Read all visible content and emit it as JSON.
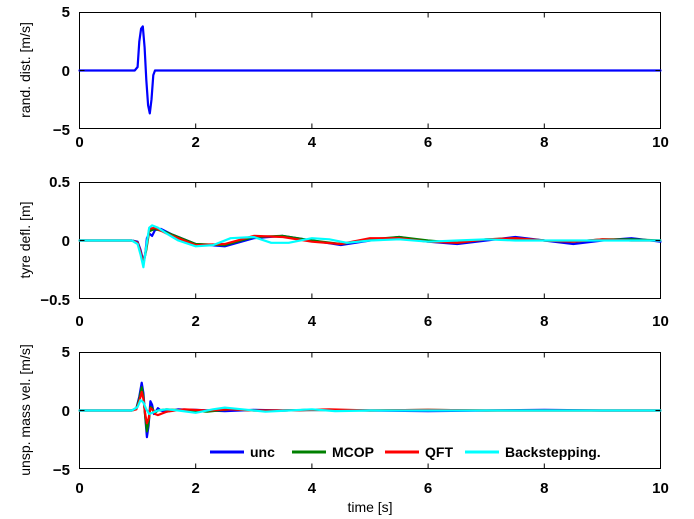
{
  "chart_data": [
    {
      "type": "line",
      "ylabel": "rand. dist. [m/s]",
      "xlabel": "",
      "xlim": [
        0,
        10
      ],
      "ylim": [
        -5,
        5
      ],
      "xticks": [
        "0",
        "2",
        "4",
        "6",
        "8",
        "10"
      ],
      "yticks": [
        "5",
        "0",
        "−5"
      ],
      "grid": false,
      "series": [
        {
          "color": "#0000ff",
          "x": [
            0,
            0.9,
            0.95,
            1.0,
            1.03,
            1.06,
            1.09,
            1.12,
            1.15,
            1.18,
            1.21,
            1.24,
            1.27,
            1.3,
            10
          ],
          "y": [
            0,
            0,
            0,
            0.3,
            2.5,
            3.6,
            3.8,
            2.0,
            -0.8,
            -3.0,
            -3.7,
            -2.5,
            -0.4,
            0,
            0
          ]
        }
      ]
    },
    {
      "type": "line",
      "ylabel": "tyre defl. [m]",
      "xlabel": "",
      "xlim": [
        0,
        10
      ],
      "ylim": [
        -0.5,
        0.5
      ],
      "xticks": [
        "0",
        "2",
        "4",
        "6",
        "8",
        "10"
      ],
      "yticks": [
        "0.5",
        "0",
        "−0.5"
      ],
      "grid": false,
      "series": [
        {
          "color": "#0000ff",
          "x": [
            0,
            0.9,
            1.0,
            1.05,
            1.1,
            1.13,
            1.16,
            1.2,
            1.25,
            1.3,
            1.4,
            1.6,
            2.0,
            2.5,
            3.0,
            3.5,
            4.0,
            4.5,
            5.0,
            5.5,
            6.0,
            6.5,
            7.0,
            7.5,
            8.0,
            8.5,
            9.0,
            9.5,
            10.0
          ],
          "y": [
            0,
            0,
            -0.01,
            -0.08,
            -0.18,
            -0.12,
            0.02,
            0.06,
            0.04,
            0.09,
            0.1,
            0.05,
            -0.03,
            -0.05,
            0.02,
            0.04,
            0.0,
            -0.04,
            0.0,
            0.03,
            -0.01,
            -0.03,
            0.0,
            0.03,
            0.0,
            -0.03,
            0.0,
            0.02,
            -0.01
          ]
        },
        {
          "color": "#008000",
          "x": [
            0,
            0.9,
            1.0,
            1.05,
            1.1,
            1.15,
            1.2,
            1.3,
            1.5,
            2.0,
            2.5,
            3.0,
            3.5,
            4.0,
            4.5,
            5.0,
            5.5,
            6.0,
            6.5,
            7.0,
            7.5,
            8.0,
            8.5,
            9.0,
            9.5,
            10.0
          ],
          "y": [
            0,
            0,
            -0.02,
            -0.1,
            -0.2,
            -0.08,
            0.08,
            0.1,
            0.07,
            -0.03,
            -0.04,
            0.03,
            0.04,
            0.0,
            -0.03,
            0.01,
            0.03,
            0.0,
            -0.02,
            0.01,
            0.02,
            0.0,
            -0.01,
            0.01,
            0.01,
            0.0
          ]
        },
        {
          "color": "#ff0000",
          "x": [
            0,
            0.9,
            1.0,
            1.05,
            1.1,
            1.15,
            1.2,
            1.3,
            1.5,
            2.0,
            2.5,
            3.0,
            3.5,
            4.0,
            4.5,
            5.0,
            5.5,
            6.0,
            6.5,
            7.0,
            7.5,
            8.0,
            8.5,
            9.0,
            9.5,
            10.0
          ],
          "y": [
            0,
            0,
            -0.02,
            -0.1,
            -0.2,
            -0.06,
            0.1,
            0.11,
            0.06,
            -0.04,
            -0.03,
            0.04,
            0.03,
            -0.01,
            -0.03,
            0.02,
            0.02,
            -0.01,
            -0.02,
            0.01,
            0.02,
            0.0,
            -0.01,
            0.01,
            0.0,
            0.0
          ]
        },
        {
          "color": "#00ffff",
          "x": [
            0,
            0.9,
            1.0,
            1.05,
            1.1,
            1.15,
            1.2,
            1.25,
            1.35,
            1.5,
            1.7,
            2.0,
            2.3,
            2.6,
            3.0,
            3.3,
            3.6,
            4.0,
            4.3,
            4.6,
            5.0,
            5.5,
            6.0,
            6.5,
            7.0,
            7.5,
            8.0,
            8.5,
            9.0,
            9.5,
            10.0
          ],
          "y": [
            0,
            0,
            -0.03,
            -0.12,
            -0.23,
            -0.05,
            0.11,
            0.13,
            0.11,
            0.06,
            0.0,
            -0.05,
            -0.04,
            0.02,
            0.03,
            -0.02,
            -0.02,
            0.02,
            0.01,
            -0.02,
            0.0,
            0.01,
            -0.01,
            0.0,
            0.01,
            0.0,
            0.0,
            0.0,
            0.0,
            0.0,
            0.0
          ]
        }
      ]
    },
    {
      "type": "line",
      "ylabel": "unsp. mass vel. [m/s]",
      "xlabel": "time [s]",
      "xlim": [
        0,
        10
      ],
      "ylim": [
        -5,
        5
      ],
      "xticks": [
        "0",
        "2",
        "4",
        "6",
        "8",
        "10"
      ],
      "yticks": [
        "5",
        "0",
        "−5"
      ],
      "grid": false,
      "legend": {
        "position": "bottom-right",
        "entries": [
          "unc",
          "MCOP",
          "QFT",
          "Backstepping."
        ]
      },
      "series": [
        {
          "name": "unc",
          "color": "#0000ff",
          "x": [
            0,
            0.9,
            0.98,
            1.03,
            1.07,
            1.1,
            1.13,
            1.16,
            1.19,
            1.22,
            1.25,
            1.28,
            1.31,
            1.35,
            1.4,
            1.5,
            1.7,
            2.0,
            2.5,
            3.0,
            3.5,
            4.0,
            5.0,
            6.0,
            7.0,
            8.0,
            9.0,
            10.0
          ],
          "y": [
            0,
            0,
            0.2,
            1.2,
            2.4,
            1.5,
            -0.5,
            -2.3,
            -1.3,
            0.8,
            0.5,
            -0.3,
            -0.1,
            0.2,
            0.0,
            -0.1,
            0.1,
            0.05,
            -0.05,
            0.05,
            0.0,
            0.05,
            0.0,
            -0.05,
            0.0,
            0.05,
            0.0,
            0.0
          ]
        },
        {
          "name": "MCOP",
          "color": "#008000",
          "x": [
            0,
            0.9,
            0.98,
            1.03,
            1.07,
            1.1,
            1.13,
            1.16,
            1.19,
            1.22,
            1.25,
            1.3,
            1.35,
            1.5,
            1.8,
            2.2,
            2.6,
            3.0,
            3.5,
            4.0,
            5.0,
            6.0,
            7.0,
            8.0,
            9.0,
            10.0
          ],
          "y": [
            0,
            0,
            0.2,
            1.0,
            2.0,
            1.2,
            -0.5,
            -1.8,
            -1.0,
            0.3,
            0.2,
            -0.2,
            0.0,
            0.1,
            0.0,
            -0.1,
            0.1,
            0.0,
            0.0,
            0.05,
            0.0,
            0.05,
            0.0,
            0.0,
            0.0,
            0.0
          ]
        },
        {
          "name": "QFT",
          "color": "#ff0000",
          "x": [
            0,
            0.9,
            0.98,
            1.03,
            1.07,
            1.1,
            1.13,
            1.16,
            1.19,
            1.22,
            1.25,
            1.3,
            1.35,
            1.5,
            1.8,
            2.2,
            2.6,
            3.0,
            3.5,
            4.0,
            4.3,
            5.0,
            6.0,
            7.0,
            8.0,
            9.0,
            10.0
          ],
          "y": [
            0,
            0,
            0.1,
            0.8,
            1.6,
            1.0,
            -0.3,
            -1.1,
            -0.7,
            0.2,
            0.1,
            -0.3,
            -0.4,
            -0.1,
            0.1,
            0.0,
            0.1,
            0.0,
            0.0,
            0.05,
            0.1,
            0.0,
            0.05,
            0.0,
            0.0,
            0.0,
            0.0
          ]
        },
        {
          "name": "Backstepping.",
          "color": "#00ffff",
          "x": [
            0,
            0.9,
            1.0,
            1.05,
            1.1,
            1.15,
            1.2,
            1.25,
            1.35,
            1.5,
            1.7,
            2.0,
            2.3,
            2.5,
            2.8,
            3.2,
            3.6,
            4.0,
            4.4,
            5.0,
            6.0,
            7.0,
            8.0,
            9.0,
            10.0
          ],
          "y": [
            0,
            0,
            0.3,
            0.9,
            0.7,
            0.1,
            -0.3,
            -0.2,
            0.0,
            0.1,
            0.0,
            -0.2,
            0.1,
            0.25,
            0.1,
            -0.1,
            0.0,
            0.1,
            -0.05,
            0.0,
            0.0,
            0.0,
            0.0,
            0.0,
            0.0
          ]
        }
      ]
    }
  ]
}
